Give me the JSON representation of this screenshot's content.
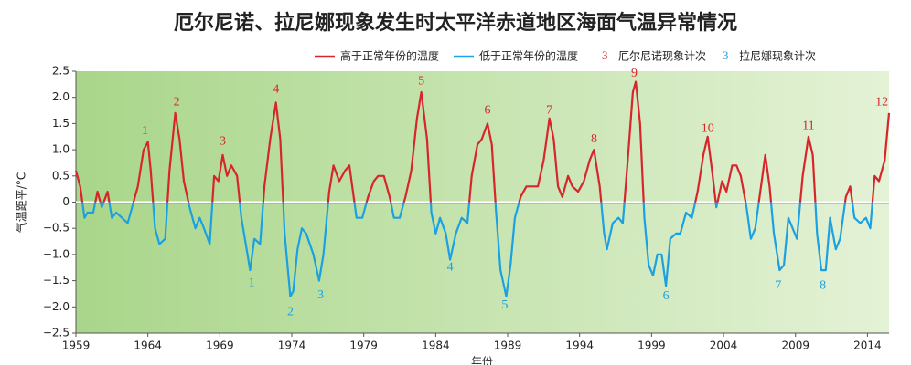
{
  "chart_data": {
    "type": "line",
    "title": "厄尔尼诺、拉尼娜现象发生时太平洋赤道地区海面气温异常情况",
    "x_label": "年份",
    "y_label": "气温距平/°C",
    "above_color": "#d7262b",
    "below_color": "#1ba1e2",
    "legend": [
      {
        "name": "高于正常年份的温度",
        "color": "#d7262b"
      },
      {
        "name": "低于正常年份的温度",
        "color": "#1ba1e2"
      }
    ],
    "legend_annotations": [
      {
        "symbol": "3",
        "name": "厄尔尼诺现象计次",
        "color": "#d7262b"
      },
      {
        "symbol": "3",
        "name": "拉尼娜现象计次",
        "color": "#1ba1e2"
      }
    ],
    "xlim": [
      1959,
      2015.5
    ],
    "xticks": [
      1959,
      1964,
      1969,
      1974,
      1979,
      1984,
      1989,
      1994,
      1999,
      2004,
      2009,
      2014
    ],
    "ylim": [
      -2.5,
      2.5
    ],
    "yticks": [
      {
        "value": -2.5,
        "label": "−2.5"
      },
      {
        "value": -2,
        "label": "−2.0"
      },
      {
        "value": -1.5,
        "label": "−1.5"
      },
      {
        "value": -1,
        "label": "−1.0"
      },
      {
        "value": -0.5,
        "label": "−0.5"
      },
      {
        "value": 0,
        "label": "0"
      },
      {
        "value": 0.5,
        "label": "0.5"
      },
      {
        "value": 1,
        "label": "1.0"
      },
      {
        "value": 1.5,
        "label": "1.5"
      },
      {
        "value": 2,
        "label": "2.0"
      },
      {
        "value": 2.5,
        "label": "2.5"
      }
    ],
    "x": [
      1959.0,
      1959.3,
      1959.6,
      1959.8,
      1960.2,
      1960.5,
      1960.8,
      1961.2,
      1961.5,
      1961.8,
      1962.2,
      1962.6,
      1962.9,
      1963.3,
      1963.7,
      1964.0,
      1964.2,
      1964.5,
      1964.8,
      1965.2,
      1965.5,
      1965.9,
      1966.2,
      1966.5,
      1966.9,
      1967.3,
      1967.6,
      1967.9,
      1968.3,
      1968.6,
      1968.9,
      1969.2,
      1969.5,
      1969.8,
      1970.2,
      1970.5,
      1970.8,
      1971.1,
      1971.4,
      1971.8,
      1972.1,
      1972.5,
      1972.9,
      1973.2,
      1973.5,
      1973.9,
      1974.1,
      1974.4,
      1974.7,
      1975.0,
      1975.5,
      1975.9,
      1976.2,
      1976.6,
      1976.9,
      1977.3,
      1977.7,
      1978.0,
      1978.5,
      1978.9,
      1979.3,
      1979.7,
      1980.0,
      1980.4,
      1980.8,
      1981.1,
      1981.5,
      1981.9,
      1982.3,
      1982.7,
      1983.0,
      1983.4,
      1983.7,
      1984.0,
      1984.3,
      1984.7,
      1985.0,
      1985.4,
      1985.8,
      1986.2,
      1986.5,
      1986.9,
      1987.2,
      1987.6,
      1987.9,
      1988.2,
      1988.5,
      1988.9,
      1989.2,
      1989.5,
      1989.9,
      1990.3,
      1990.7,
      1991.1,
      1991.5,
      1991.9,
      1992.2,
      1992.5,
      1992.8,
      1993.2,
      1993.5,
      1993.9,
      1994.3,
      1994.7,
      1995.0,
      1995.4,
      1995.7,
      1995.9,
      1996.3,
      1996.7,
      1997.0,
      1997.4,
      1997.7,
      1997.9,
      1998.2,
      1998.5,
      1998.8,
      1999.1,
      1999.4,
      1999.7,
      2000.0,
      2000.3,
      2000.7,
      2001.0,
      2001.4,
      2001.8,
      2002.2,
      2002.6,
      2002.9,
      2003.2,
      2003.5,
      2003.9,
      2004.2,
      2004.6,
      2004.9,
      2005.2,
      2005.6,
      2005.9,
      2006.2,
      2006.6,
      2006.9,
      2007.2,
      2007.5,
      2007.9,
      2008.2,
      2008.5,
      2008.8,
      2009.1,
      2009.5,
      2009.9,
      2010.2,
      2010.5,
      2010.8,
      2011.1,
      2011.4,
      2011.8,
      2012.1,
      2012.5,
      2012.8,
      2013.1,
      2013.5,
      2013.9,
      2014.2,
      2014.5,
      2014.8,
      2015.2,
      2015.5
    ],
    "values": [
      0.6,
      0.3,
      -0.3,
      -0.2,
      -0.2,
      0.2,
      -0.1,
      0.2,
      -0.3,
      -0.2,
      -0.3,
      -0.4,
      -0.1,
      0.3,
      1.0,
      1.15,
      0.6,
      -0.5,
      -0.8,
      -0.7,
      0.6,
      1.7,
      1.2,
      0.4,
      -0.1,
      -0.5,
      -0.3,
      -0.5,
      -0.8,
      0.5,
      0.4,
      0.9,
      0.5,
      0.7,
      0.5,
      -0.3,
      -0.8,
      -1.3,
      -0.7,
      -0.8,
      0.3,
      1.2,
      1.9,
      1.2,
      -0.6,
      -1.8,
      -1.7,
      -0.9,
      -0.5,
      -0.6,
      -1.0,
      -1.5,
      -1.0,
      0.2,
      0.7,
      0.4,
      0.6,
      0.7,
      -0.3,
      -0.3,
      0.1,
      0.4,
      0.5,
      0.5,
      0.1,
      -0.3,
      -0.3,
      0.1,
      0.6,
      1.6,
      2.1,
      1.2,
      -0.2,
      -0.6,
      -0.3,
      -0.6,
      -1.1,
      -0.6,
      -0.3,
      -0.4,
      0.5,
      1.1,
      1.2,
      1.5,
      1.1,
      -0.2,
      -1.3,
      -1.8,
      -1.2,
      -0.3,
      0.1,
      0.3,
      0.3,
      0.3,
      0.8,
      1.6,
      1.2,
      0.3,
      0.1,
      0.5,
      0.3,
      0.2,
      0.4,
      0.8,
      1.0,
      0.3,
      -0.6,
      -0.9,
      -0.4,
      -0.3,
      -0.4,
      1.0,
      2.1,
      2.3,
      1.5,
      -0.3,
      -1.2,
      -1.4,
      -1.0,
      -1.0,
      -1.6,
      -0.7,
      -0.6,
      -0.6,
      -0.2,
      -0.3,
      0.2,
      0.9,
      1.25,
      0.6,
      -0.1,
      0.4,
      0.2,
      0.7,
      0.7,
      0.5,
      -0.1,
      -0.7,
      -0.5,
      0.3,
      0.9,
      0.3,
      -0.6,
      -1.3,
      -1.2,
      -0.3,
      -0.5,
      -0.7,
      0.5,
      1.25,
      0.9,
      -0.6,
      -1.3,
      -1.3,
      -0.3,
      -0.9,
      -0.7,
      0.1,
      0.3,
      -0.3,
      -0.4,
      -0.3,
      -0.5,
      0.5,
      0.4,
      0.8,
      1.7
    ],
    "el_nino": [
      {
        "text": "1",
        "x": 1963.8,
        "y": 1.35
      },
      {
        "text": "2",
        "x": 1966.0,
        "y": 1.9
      },
      {
        "text": "3",
        "x": 1969.2,
        "y": 1.15
      },
      {
        "text": "4",
        "x": 1972.9,
        "y": 2.15
      },
      {
        "text": "5",
        "x": 1983.0,
        "y": 2.3
      },
      {
        "text": "6",
        "x": 1987.6,
        "y": 1.75
      },
      {
        "text": "7",
        "x": 1991.9,
        "y": 1.75
      },
      {
        "text": "8",
        "x": 1995.0,
        "y": 1.2
      },
      {
        "text": "9",
        "x": 1997.8,
        "y": 2.45
      },
      {
        "text": "10",
        "x": 2002.9,
        "y": 1.4
      },
      {
        "text": "11",
        "x": 2009.9,
        "y": 1.45
      },
      {
        "text": "12",
        "x": 2015.0,
        "y": 1.9
      }
    ],
    "la_nina": [
      {
        "text": "1",
        "x": 1971.2,
        "y": -1.55
      },
      {
        "text": "2",
        "x": 1973.9,
        "y": -2.1
      },
      {
        "text": "3",
        "x": 1976.0,
        "y": -1.78
      },
      {
        "text": "4",
        "x": 1985.0,
        "y": -1.25
      },
      {
        "text": "5",
        "x": 1988.8,
        "y": -1.97
      },
      {
        "text": "6",
        "x": 2000.0,
        "y": -1.8
      },
      {
        "text": "7",
        "x": 2007.8,
        "y": -1.6
      },
      {
        "text": "8",
        "x": 2010.9,
        "y": -1.6
      }
    ]
  }
}
